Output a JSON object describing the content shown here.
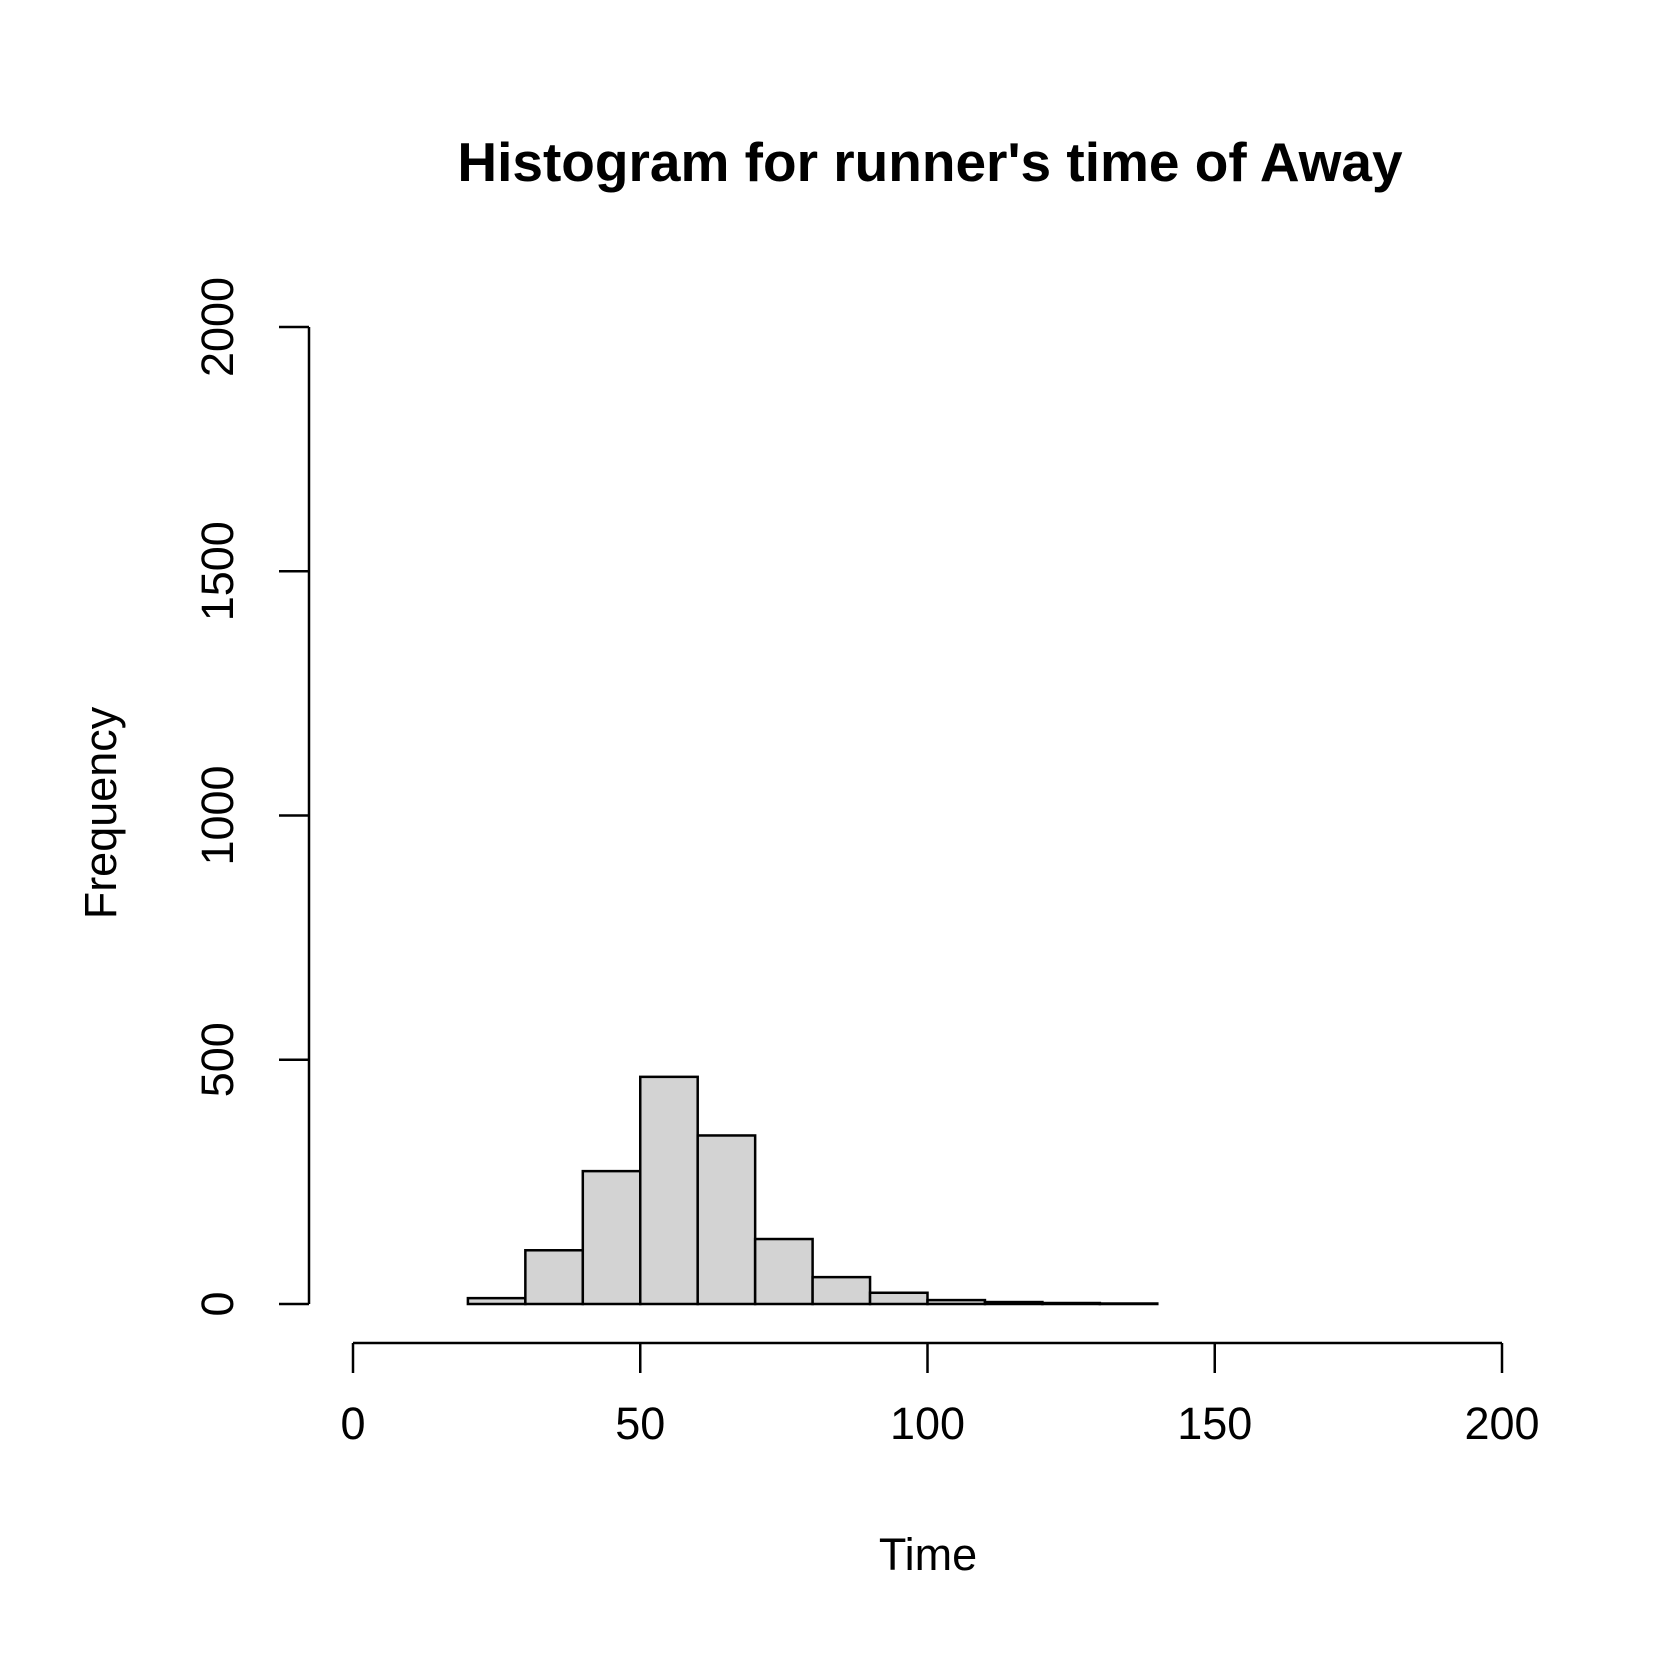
{
  "chart_data": {
    "type": "bar",
    "title": "Histogram for runner's time of Away",
    "xlabel": "Time",
    "ylabel": "Frequency",
    "xlim": [
      0,
      200
    ],
    "ylim": [
      0,
      2000
    ],
    "x_ticks": [
      0,
      50,
      100,
      150,
      200
    ],
    "y_ticks": [
      0,
      500,
      1000,
      1500,
      2000
    ],
    "bin_edges": [
      20,
      30,
      40,
      50,
      60,
      70,
      80,
      90,
      100,
      110,
      120,
      130,
      140
    ],
    "values": [
      12,
      110,
      272,
      465,
      345,
      133,
      55,
      23,
      8,
      4,
      2,
      1
    ],
    "bar_color": "#d3d3d3",
    "grid": false
  }
}
